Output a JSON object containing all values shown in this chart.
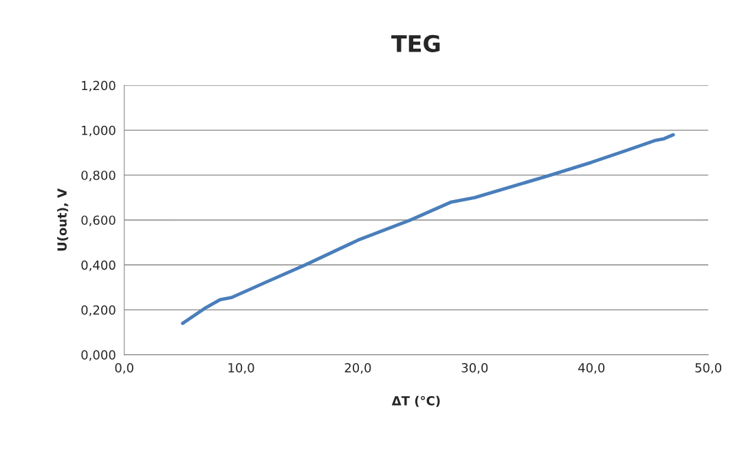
{
  "chart_data": {
    "type": "line",
    "title": "TEG",
    "xlabel": "ΔT (°C)",
    "ylabel": "U(out), V",
    "xlim": [
      0,
      50
    ],
    "xticks": [
      {
        "value": 0,
        "label": "0,0"
      },
      {
        "value": 10,
        "label": "10,0"
      },
      {
        "value": 20,
        "label": "20,0"
      },
      {
        "value": 30,
        "label": "30,0"
      },
      {
        "value": 40,
        "label": "40,0"
      },
      {
        "value": 50,
        "label": "50,0"
      }
    ],
    "ylim": [
      0,
      1.2
    ],
    "yticks": [
      {
        "value": 0,
        "label": "0,000"
      },
      {
        "value": 0.2,
        "label": "0,200"
      },
      {
        "value": 0.4,
        "label": "0,400"
      },
      {
        "value": 0.6,
        "label": "0,600"
      },
      {
        "value": 0.8,
        "label": "0,800"
      },
      {
        "value": 1.0,
        "label": "1,000"
      },
      {
        "value": 1.2,
        "label": "1,200"
      }
    ],
    "grid": "y",
    "marker": "none",
    "line_style": "solid",
    "series": [
      {
        "color": "#4a7ebb",
        "x": [
          5.0,
          7.0,
          8.2,
          9.2,
          12.0,
          15.5,
          20.0,
          24.5,
          28.0,
          30.0,
          36.5,
          40.0,
          43.0,
          45.5,
          46.2,
          47.0
        ],
        "values": [
          0.14,
          0.21,
          0.245,
          0.255,
          0.32,
          0.4,
          0.51,
          0.6,
          0.68,
          0.7,
          0.8,
          0.857,
          0.91,
          0.955,
          0.962,
          0.98
        ]
      }
    ]
  }
}
